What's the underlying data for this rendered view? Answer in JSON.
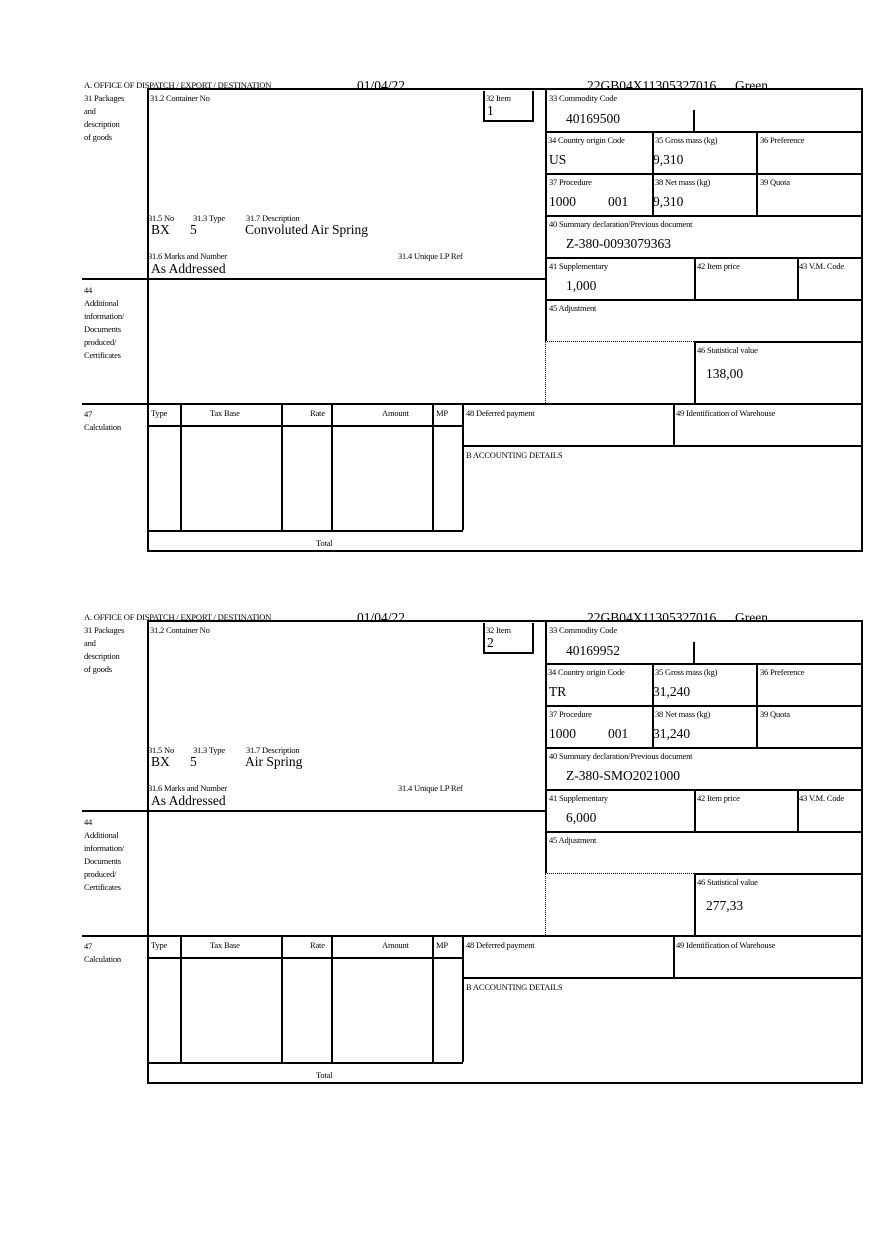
{
  "header": {
    "office_label": "A.  OFFICE OF DISPATCH / EXPORT / DESTINATION",
    "date": "01/04/22",
    "reference": "22GB04X11305327016",
    "route": "Green"
  },
  "labels": {
    "packages": [
      "31 Packages",
      "and",
      "description",
      "of goods"
    ],
    "container_no": "31.2 Container No",
    "item": "32 Item",
    "no": "31.5 No",
    "type": "31.3 Type",
    "description": "31.7 Description",
    "marks": "31.6 Marks and Number",
    "unique_lp_ref": "31.4 Unique LP Ref",
    "additional_info": [
      "44",
      "Additional",
      "information/",
      "Documents",
      "produced/",
      "Certificates"
    ],
    "commodity_code": "33 Commodity Code",
    "country_origin": "34 Country origin Code",
    "gross_mass": "35 Gross mass (kg)",
    "preference": "36 Preference",
    "procedure": "37 Procedure",
    "net_mass": "38 Net mass (kg)",
    "quota": "39 Quota",
    "summary_declaration": "40 Summary declaration/Previous document",
    "supplementary": "41 Supplementary",
    "item_price": "42 Item price",
    "vm_code": "43 V.M. Code",
    "adjustment": "45 Adjustment",
    "statistical_value": "46 Statistical value",
    "calculation": [
      "47",
      "Calculation"
    ],
    "calc_columns": [
      "Type",
      "Tax Base",
      "Rate",
      "Amount",
      "MP"
    ],
    "total": "Total",
    "deferred_payment": "48 Deferred payment",
    "warehouse": "49 Identification of Warehouse",
    "accounting": "B ACCOUNTING DETAILS"
  },
  "items": [
    {
      "item_no": "1",
      "package_kind": "BX",
      "package_count": "5",
      "description": "Convoluted Air Spring",
      "marks": "As Addressed",
      "commodity_code": "40169500",
      "country_origin": "US",
      "gross_mass": "9,310",
      "procedure": "1000",
      "procedure_additional": "001",
      "net_mass": "9,310",
      "previous_document": "Z-380-0093079363",
      "supplementary": "1,000",
      "statistical_value": "138,00"
    },
    {
      "item_no": "2",
      "package_kind": "BX",
      "package_count": "5",
      "description": "Air Spring",
      "marks": "As Addressed",
      "commodity_code": "40169952",
      "country_origin": "TR",
      "gross_mass": "31,240",
      "procedure": "1000",
      "procedure_additional": "001",
      "net_mass": "31,240",
      "previous_document": "Z-380-SMO2021000",
      "supplementary": "6,000",
      "statistical_value": "277,33"
    }
  ]
}
